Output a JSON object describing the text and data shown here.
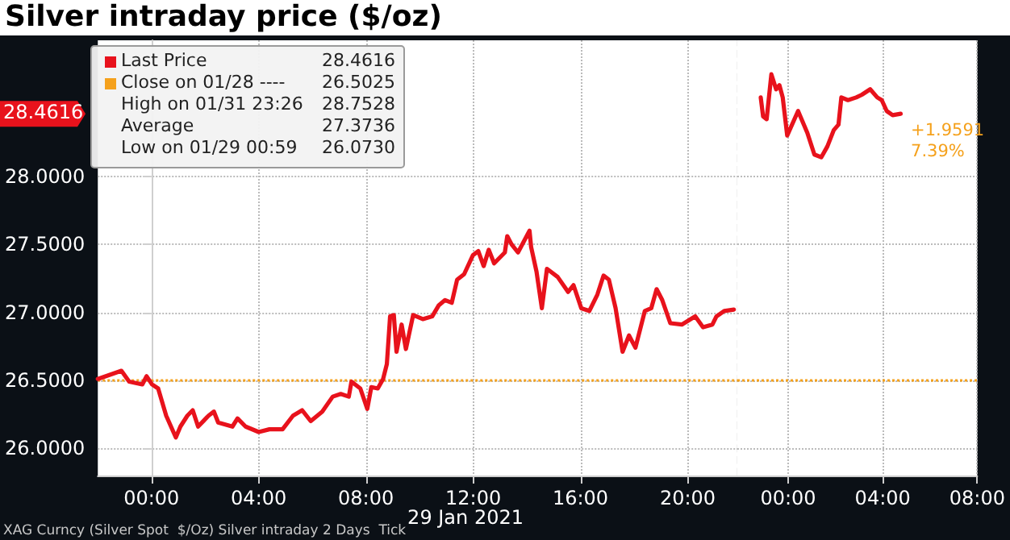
{
  "chart_data": [
    {
      "type": "line",
      "title": "Silver intraday price ($/oz)",
      "x": [
        -2.0,
        -1.12,
        -0.83,
        -0.34,
        -0.18,
        0.02,
        0.25,
        0.55,
        0.91,
        1.08,
        1.34,
        1.54,
        1.74,
        2.13,
        2.33,
        2.49,
        3.02,
        3.21,
        3.51,
        4.0,
        4.4,
        4.89,
        5.28,
        5.62,
        5.94,
        6.37,
        6.76,
        7.06,
        7.36,
        7.46,
        7.79,
        8.05,
        8.2,
        8.44,
        8.64,
        8.78,
        8.9,
        9.04,
        9.14,
        9.33,
        9.49,
        9.76,
        10.12,
        10.47,
        10.71,
        10.95,
        11.2,
        11.4,
        11.66,
        11.99,
        12.19,
        12.39,
        12.58,
        12.78,
        13.18,
        13.27,
        13.43,
        13.67,
        14.1,
        14.16,
        14.36,
        14.56,
        14.75,
        15.15,
        15.54,
        15.74,
        16.03,
        16.33,
        16.63,
        16.86,
        17.06,
        17.31,
        17.57,
        17.81,
        18.05,
        18.4,
        18.64,
        18.84,
        19.05,
        19.35,
        19.78,
        20.28,
        20.57,
        20.92,
        21.07,
        21.36,
        21.72
      ],
      "series": [
        {
          "name": "Last Price",
          "color": "#e8121c",
          "values": [
            26.51,
            26.57,
            26.49,
            26.47,
            26.53,
            26.47,
            26.44,
            26.24,
            26.08,
            26.16,
            26.24,
            26.28,
            26.16,
            26.24,
            26.27,
            26.19,
            26.16,
            26.22,
            26.16,
            26.12,
            26.14,
            26.14,
            26.24,
            26.28,
            26.2,
            26.27,
            26.38,
            26.4,
            26.38,
            26.49,
            26.44,
            26.29,
            26.45,
            26.44,
            26.51,
            26.62,
            26.97,
            26.98,
            26.71,
            26.91,
            26.73,
            26.98,
            26.95,
            26.97,
            27.05,
            27.09,
            27.07,
            27.24,
            27.28,
            27.42,
            27.45,
            27.34,
            27.46,
            27.36,
            27.44,
            27.56,
            27.5,
            27.44,
            27.6,
            27.48,
            27.3,
            27.03,
            27.32,
            27.26,
            27.15,
            27.2,
            27.03,
            27.01,
            27.13,
            27.27,
            27.24,
            27.03,
            26.71,
            26.83,
            26.74,
            27.01,
            27.03,
            27.17,
            27.09,
            26.92,
            26.91,
            26.97,
            26.89,
            26.91,
            26.97,
            27.01,
            27.02
          ]
        }
      ],
      "xlim": [
        -2,
        21.85
      ],
      "xticks": [
        {
          "value": 0,
          "label": "00:00"
        },
        {
          "value": 4,
          "label": "04:00"
        },
        {
          "value": 8,
          "label": "08:00"
        },
        {
          "value": 12,
          "label": "12:00"
        },
        {
          "value": 16,
          "label": "16:00"
        },
        {
          "value": 20,
          "label": "20:00"
        }
      ],
      "ylim": [
        25.8,
        29.0
      ],
      "yticks": [
        {
          "value": 26,
          "label": "26.0000"
        },
        {
          "value": 26.5,
          "label": "26.5000"
        },
        {
          "value": 27,
          "label": "27.0000"
        },
        {
          "value": 27.5,
          "label": "27.5000"
        },
        {
          "value": 28,
          "label": "28.0000"
        }
      ],
      "ref_lines": [
        {
          "axis": "y",
          "value": 26.5025,
          "label": "Close on 01/28 ----",
          "color": "#f5a11c",
          "line_style": "dotted"
        },
        {
          "axis": "x",
          "value": 21.85,
          "color": "#b0b0b0",
          "line_style": "dashed"
        }
      ],
      "annotations": [
        "28.4616",
        "26.5025",
        "High on 01/31 23:26",
        "28.7528",
        "Average",
        "27.3736",
        "Low on 01/29 00:59",
        "26.0730",
        "28.4616",
        "29 Jan 2021",
        "XAG Curncy (Silver Spot  $/Oz) Silver intraday 2 Days  Tick"
      ],
      "grid": true,
      "legend": "top left",
      "line_style": "solid",
      "marker": "none"
    },
    {
      "type": "line",
      "x": [
        -1.16,
        -1.06,
        -0.91,
        -0.71,
        -0.51,
        -0.37,
        -0.23,
        -0.04,
        0.42,
        0.81,
        1.11,
        1.4,
        1.66,
        1.93,
        2.13,
        2.25,
        2.53,
        2.88,
        3.12,
        3.47,
        3.77,
        3.96,
        4.17,
        4.42,
        4.76
      ],
      "series": [
        {
          "color": "#e8121c",
          "values": [
            28.58,
            28.44,
            28.42,
            28.75,
            28.64,
            28.67,
            28.58,
            28.3,
            28.48,
            28.32,
            28.16,
            28.14,
            28.22,
            28.34,
            28.38,
            28.58,
            28.56,
            28.58,
            28.6,
            28.64,
            28.58,
            28.56,
            28.48,
            28.45,
            28.46
          ]
        }
      ],
      "xlim": [
        -2.15,
        8
      ],
      "xticks": [
        {
          "value": 0,
          "label": "00:00"
        },
        {
          "value": 4,
          "label": "04:00"
        },
        {
          "value": 8,
          "label": "08:00"
        }
      ],
      "ylim": [
        25.8,
        29.0
      ],
      "yticks": [
        26,
        26.5,
        27,
        27.5,
        28
      ],
      "ref_lines": [
        {
          "axis": "y",
          "value": 26.5025,
          "color": "#f5a11c",
          "line_style": "dotted"
        }
      ],
      "annotations": [
        "+1.9591\n7.39%"
      ],
      "tick_labels": "x",
      "grid": true,
      "line_style": "solid",
      "marker": "none"
    }
  ]
}
